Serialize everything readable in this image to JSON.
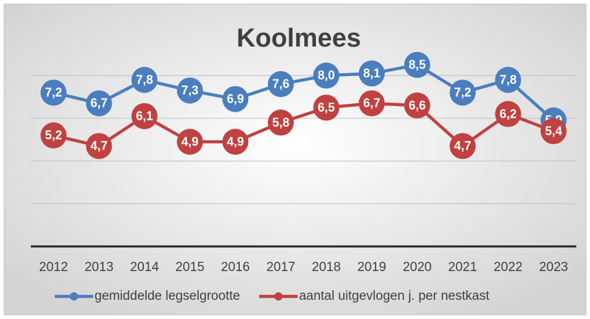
{
  "chart_data": {
    "type": "line",
    "title": "Koolmees",
    "categories": [
      "2012",
      "2013",
      "2014",
      "2015",
      "2016",
      "2017",
      "2018",
      "2019",
      "2020",
      "2021",
      "2022",
      "2023"
    ],
    "series": [
      {
        "name": "gemiddelde legselgrootte",
        "color": "#4a7ebf",
        "values": [
          7.2,
          6.7,
          7.8,
          7.3,
          6.9,
          7.6,
          8.0,
          8.1,
          8.5,
          7.2,
          7.8,
          5.9
        ],
        "value_labels": [
          "7,2",
          "6,7",
          "7,8",
          "7,3",
          "6,9",
          "7,6",
          "8,0",
          "8,1",
          "8,5",
          "7,2",
          "7,8",
          "5,9"
        ]
      },
      {
        "name": "aantal uitgevlogen j. per nestkast",
        "color": "#c0413f",
        "values": [
          5.2,
          4.7,
          6.1,
          4.9,
          4.9,
          5.8,
          6.5,
          6.7,
          6.6,
          4.7,
          6.2,
          5.4
        ],
        "value_labels": [
          "5,2",
          "4,7",
          "6,1",
          "4,9",
          "4,9",
          "5,8",
          "6,5",
          "6,7",
          "6,6",
          "4,7",
          "6,2",
          "5,4"
        ]
      }
    ],
    "ylim": [
      0,
      10
    ],
    "yticks": [
      0,
      2,
      4,
      6,
      8
    ],
    "grid": true,
    "legend": "bottom"
  }
}
